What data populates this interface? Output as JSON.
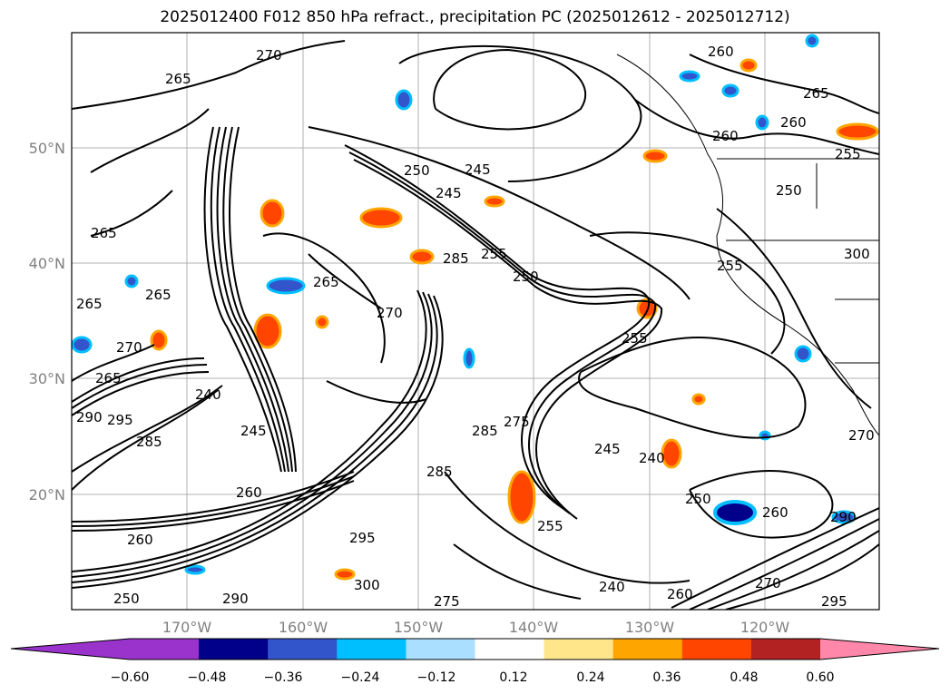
{
  "title": "2025012400 F012 850 hPa refract., precipitation PC (2025012612 - 2025012712)",
  "map": {
    "lat_labels": [
      "50°N",
      "40°N",
      "30°N",
      "20°N"
    ],
    "lon_labels": [
      "170°W",
      "160°W",
      "150°W",
      "140°W",
      "130°W",
      "120°W"
    ],
    "contour_labels": [
      "265",
      "270",
      "265",
      "265",
      "265",
      "270",
      "265",
      "290",
      "295",
      "285",
      "240",
      "245",
      "260",
      "260",
      "265",
      "270",
      "250",
      "245",
      "245",
      "285",
      "285",
      "275",
      "285",
      "255",
      "250",
      "245",
      "240",
      "250",
      "255",
      "260",
      "265",
      "260",
      "260",
      "255",
      "250",
      "255",
      "260",
      "300",
      "290",
      "295",
      "250",
      "300",
      "290",
      "295",
      "275",
      "255",
      "240",
      "270",
      "270",
      "260"
    ]
  },
  "colorbar": {
    "ticks": [
      "−0.60",
      "−0.48",
      "−0.36",
      "−0.24",
      "−0.12",
      "0.12",
      "0.24",
      "0.36",
      "0.48",
      "0.60"
    ],
    "colors": [
      "#9933cc",
      "#9933cc",
      "#00008b",
      "#3355cc",
      "#00bfff",
      "#aadfff",
      "#ffffff",
      "#ffe68a",
      "#ffa500",
      "#ff4500",
      "#b22222",
      "#ff88aa"
    ]
  }
}
